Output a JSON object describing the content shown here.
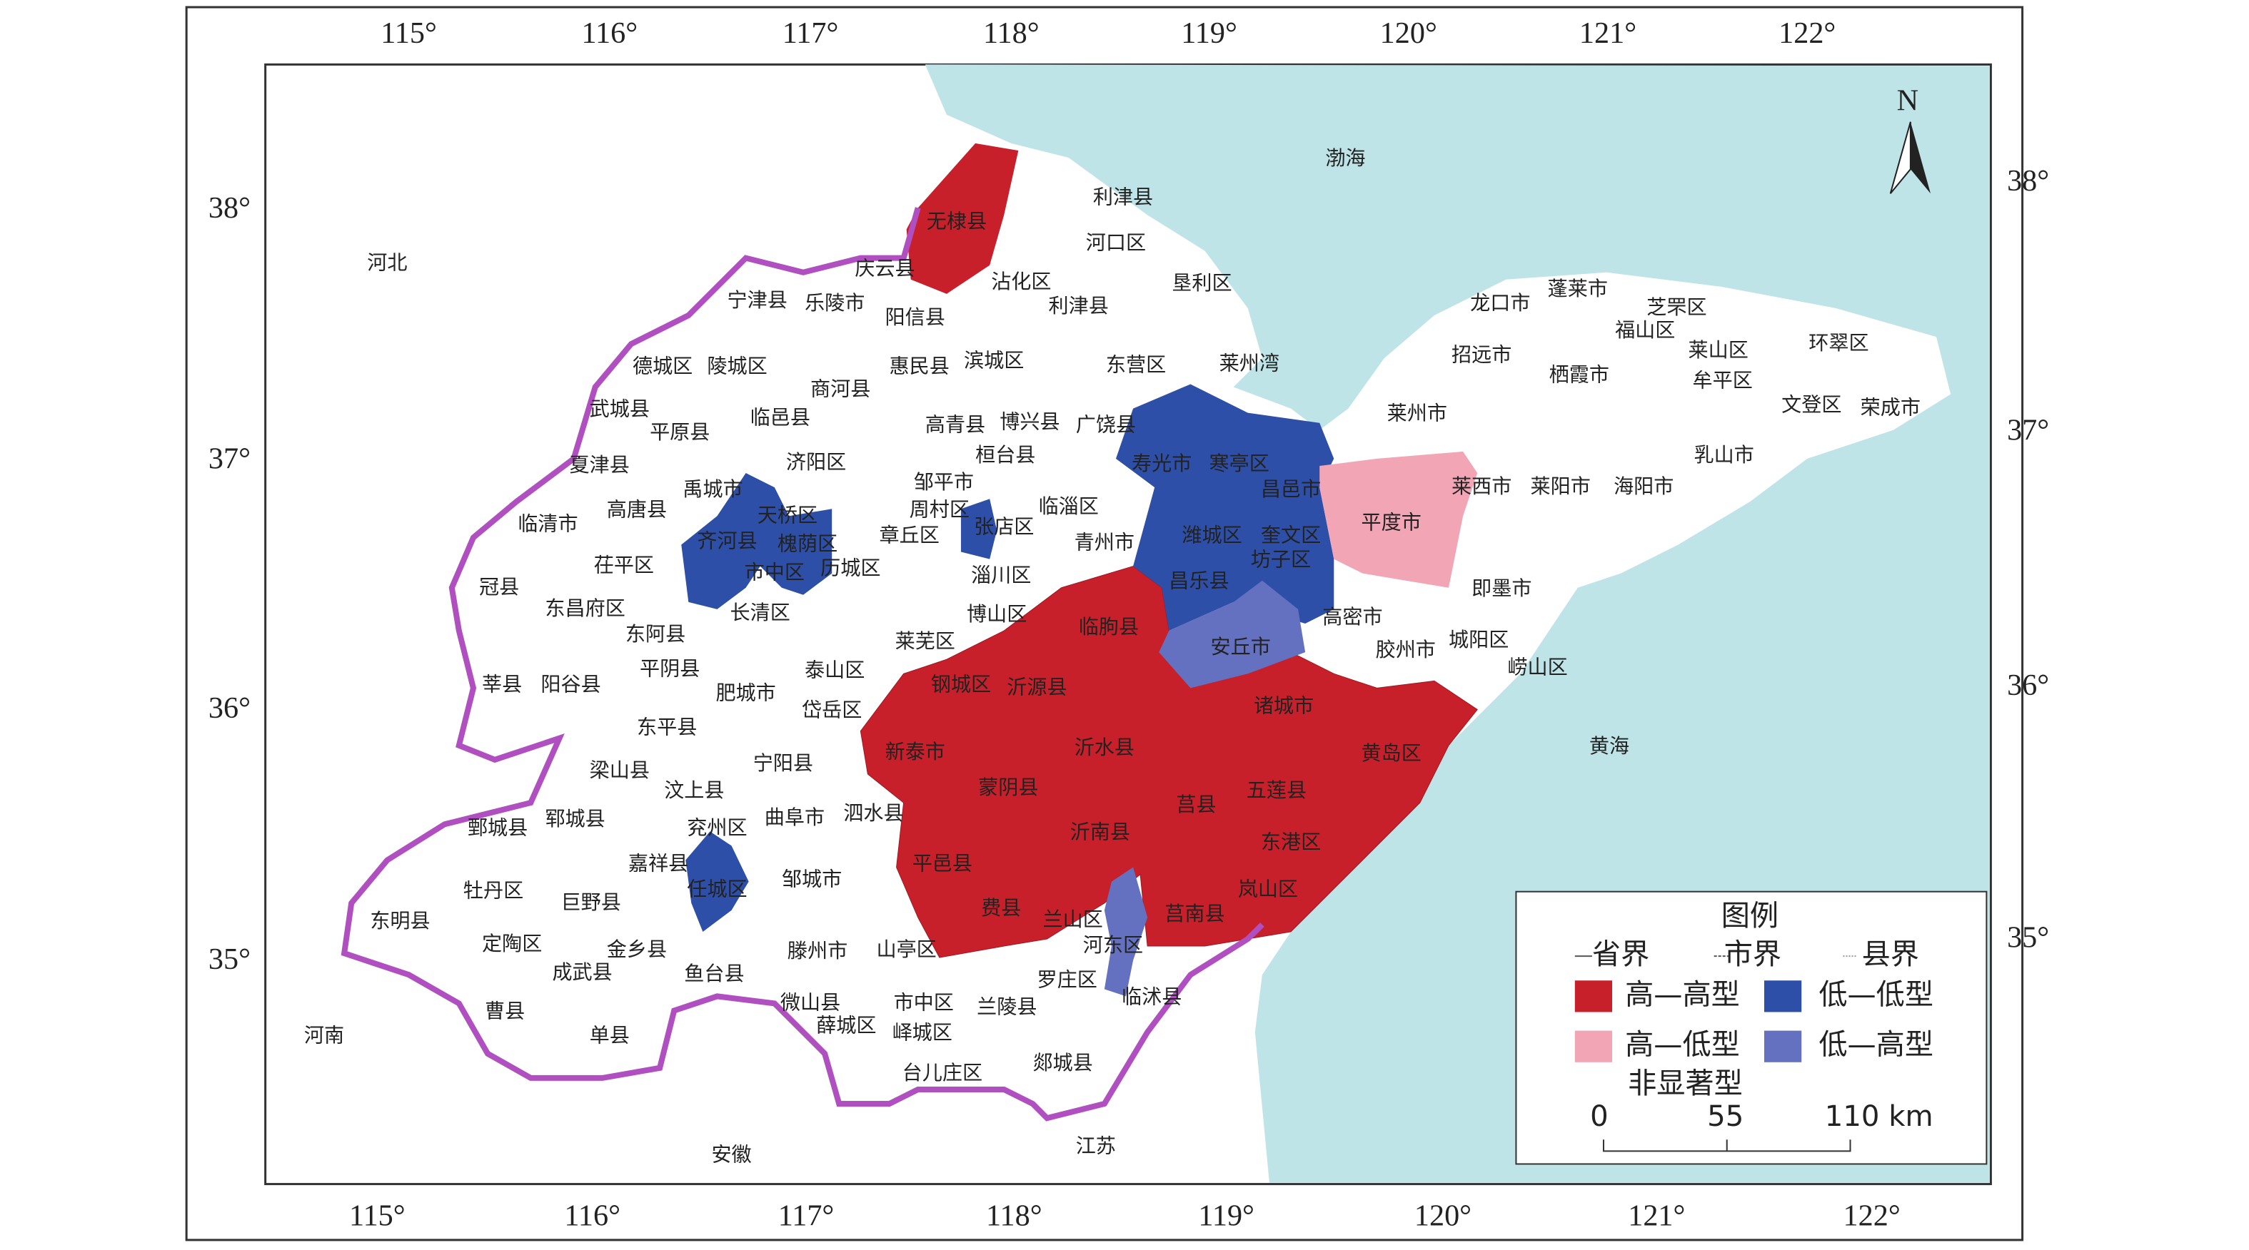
{
  "north": "N",
  "lon_labels": [
    "115°",
    "116°",
    "117°",
    "118°",
    "119°",
    "120°",
    "121°",
    "122°"
  ],
  "lat_labels": [
    "38°",
    "37°",
    "36°",
    "35°"
  ],
  "places": [
    "无棣县",
    "利津县",
    "河口区",
    "庆云县",
    "沾化区",
    "垦利区",
    "宁津县",
    "乐陵市",
    "阳信县",
    "利津县",
    "德城区",
    "陵城区",
    "商河县",
    "惠民县",
    "滨城区",
    "东营区",
    "莱州湾",
    "武城县",
    "临邑县",
    "平原县",
    "高青县",
    "博兴县",
    "广饶县",
    "夏津县",
    "济阳区",
    "邹平市",
    "桓台县",
    "寿光市",
    "寒亭区",
    "昌邑市",
    "临清市",
    "高唐县",
    "禹城市",
    "天桥区",
    "周村区",
    "临淄区",
    "潍城区",
    "奎文区",
    "齐河县",
    "槐荫区",
    "章丘区",
    "张店区",
    "青州市",
    "坊子区",
    "茌平区",
    "市中区",
    "历城区",
    "淄川区",
    "昌乐县",
    "冠县",
    "东昌府区",
    "长清区",
    "博山区",
    "临朐县",
    "高密市",
    "即墨市",
    "东阿县",
    "莱芜区",
    "安丘市",
    "胶州市",
    "城阳区",
    "崂山区",
    "莘县",
    "阳谷县",
    "平阴县",
    "泰山区",
    "钢城区",
    "沂源县",
    "诸城市",
    "肥城市",
    "岱岳区",
    "东平县",
    "新泰市",
    "沂水县",
    "黄岛区",
    "黄海",
    "梁山县",
    "宁阳县",
    "汶上县",
    "蒙阴县",
    "莒县",
    "五莲县",
    "郓城县",
    "鄄城县",
    "兖州区",
    "曲阜市",
    "泗水县",
    "沂南县",
    "东港区",
    "嘉祥县",
    "平邑县",
    "邹城市",
    "牡丹区",
    "任城区",
    "岚山区",
    "东明县",
    "巨野县",
    "费县",
    "兰山区",
    "莒南县",
    "定陶区",
    "金乡县",
    "河东区",
    "滕州市",
    "山亭区",
    "成武县",
    "鱼台县",
    "罗庄区",
    "临沭县",
    "曹县",
    "微山县",
    "市中区",
    "兰陵县",
    "单县",
    "薛城区",
    "峄城区",
    "台儿庄区",
    "郯城县",
    "河南",
    "江苏",
    "安徽",
    "河北",
    "渤海",
    "龙口市",
    "蓬莱市",
    "芝罘区",
    "福山区",
    "莱山区",
    "环翠区",
    "牟平区",
    "招远市",
    "栖霞市",
    "文登区",
    "荣成市",
    "莱州市",
    "乳山市",
    "平度市",
    "莱西市",
    "莱阳市",
    "海阳市"
  ],
  "legend": {
    "title": "图例",
    "boundaries": [
      "省界",
      "市界",
      "县界"
    ],
    "types": [
      "高—高型",
      "低—低型",
      "高—低型",
      "低—高型",
      "非显著型"
    ]
  },
  "scale": [
    "0",
    "55",
    "110 km"
  ]
}
